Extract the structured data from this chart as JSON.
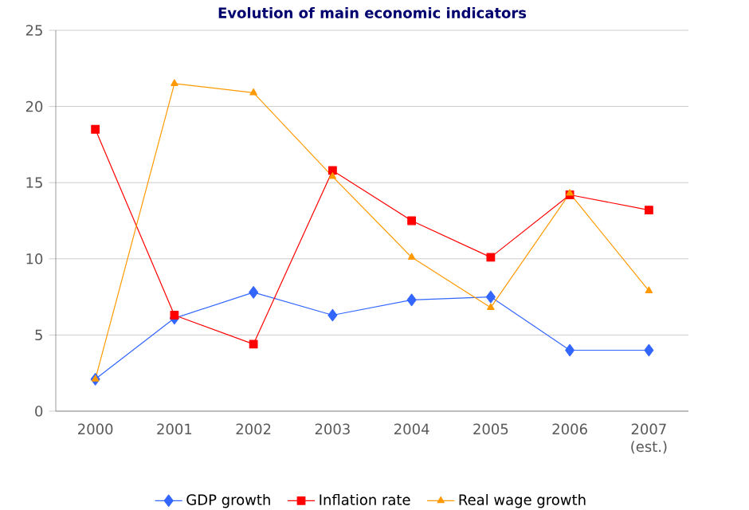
{
  "chart_data": {
    "type": "line",
    "title": "Evolution of main economic indicators",
    "categories": [
      "2000",
      "2001",
      "2002",
      "2003",
      "2004",
      "2005",
      "2006",
      "2007 (est.)"
    ],
    "series": [
      {
        "name": "GDP growth",
        "color": "#3366ff",
        "marker": "diamond",
        "values": [
          2.1,
          6.1,
          7.8,
          6.3,
          7.3,
          7.5,
          4.0,
          4.0
        ]
      },
      {
        "name": "Inflation rate",
        "color": "#ff0000",
        "marker": "square",
        "values": [
          18.5,
          6.3,
          4.4,
          15.8,
          12.5,
          10.1,
          14.2,
          13.2
        ]
      },
      {
        "name": "Real wage growth",
        "color": "#ff9900",
        "marker": "triangle",
        "values": [
          2.1,
          21.5,
          20.9,
          15.4,
          10.1,
          6.8,
          14.3,
          7.9
        ]
      }
    ],
    "ylim": [
      0,
      25
    ],
    "yticks": [
      0,
      5,
      10,
      15,
      20,
      25
    ],
    "grid": "y",
    "legend": "bottom"
  }
}
